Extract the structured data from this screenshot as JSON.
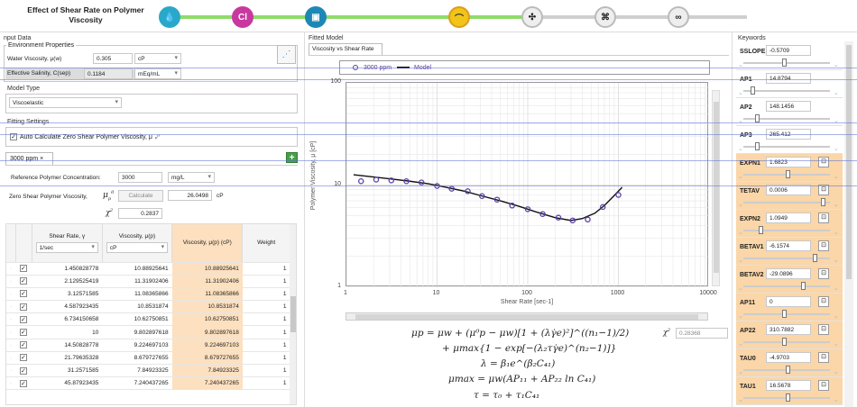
{
  "app": {
    "title": "Effect of Shear Rate on Polymer Viscosity"
  },
  "workflow": {
    "step_icons": [
      "water-drop-icon",
      "salinity-flask-icon",
      "container-icon",
      "curve-fit-icon",
      "molecule-icon",
      "filter-icon",
      "chain-icon"
    ]
  },
  "input": {
    "section": "nput Data",
    "env_title": "Environment Properties",
    "water_visc_label": "Water Viscosity, μ(w)",
    "water_visc_value": "0.305",
    "water_visc_unit": "cP",
    "sal_label": "Effective Salinity, C(sep)",
    "sal_value": "0.1184",
    "sal_unit": "mEq/mL",
    "model_type_title": "Model Type",
    "model_type_value": "Viscoelastic",
    "fit_title": "Fitting Settings",
    "auto_calc_label": "Auto Calculate Zero Shear Polymer Viscosity, μ",
    "tab_label": "3000 ppm",
    "ref_conc_label": "Reference Polymer Concentration:",
    "ref_conc_value": "3000",
    "ref_conc_unit": "mg/L",
    "zero_shear_label": "Zero Shear Polymer Viscosity,",
    "calc_button": "Calculate",
    "zero_shear_value": "26.0498",
    "zero_shear_unit": "cP",
    "chi_label": "χ",
    "chi_value": "0.2837"
  },
  "table": {
    "headers": {
      "shear": "Shear Rate, γ",
      "shear_unit": "1/sec",
      "visc": "Viscosity, μ(p)",
      "visc_unit": "cP",
      "visc2": "Viscosity, μ(p) (cP)",
      "weight": "Weight"
    },
    "rows": [
      [
        "1.450828778",
        "10.88925641",
        "10.88925641",
        "1"
      ],
      [
        "2.129525419",
        "11.31902406",
        "11.31902406",
        "1"
      ],
      [
        "3.12571585",
        "11.08365866",
        "11.08365866",
        "1"
      ],
      [
        "4.587923435",
        "10.8531874",
        "10.8531874",
        "1"
      ],
      [
        "6.734150658",
        "10.62750851",
        "10.62750851",
        "1"
      ],
      [
        "10",
        "9.802897618",
        "9.802897618",
        "1"
      ],
      [
        "14.50828778",
        "9.224697103",
        "9.224697103",
        "1"
      ],
      [
        "21.79635328",
        "8.679727655",
        "8.679727655",
        "1"
      ],
      [
        "31.2571585",
        "7.84923325",
        "7.84923325",
        "1"
      ],
      [
        "45.87923435",
        "7.240437265",
        "7.240437265",
        "1"
      ]
    ]
  },
  "fitted": {
    "section": "Fitted Model",
    "tab": "Viscosity vs Shear Rate",
    "legend_points": "3000 ppm",
    "legend_model": "Model",
    "chi_label": "χ",
    "chi_value": "0.28368"
  },
  "chart_data": {
    "type": "scatter",
    "xlabel": "Shear Rate [sec-1]",
    "ylabel": "Polymer Viscosity, μ [cP]",
    "xscale": "log",
    "yscale": "log",
    "xlim": [
      1,
      10000
    ],
    "ylim": [
      1,
      100
    ],
    "x_ticks": [
      "1",
      "10",
      "100",
      "1000",
      "10000"
    ],
    "y_ticks": [
      "1",
      "10",
      "100"
    ],
    "grid": true,
    "legend": "top",
    "series": [
      {
        "name": "3000 ppm",
        "kind": "points",
        "color": "#5b3fa6",
        "x": [
          1.45,
          2.13,
          3.13,
          4.59,
          6.73,
          10,
          14.5,
          21.8,
          31.3,
          45.9,
          67.3,
          100,
          146,
          218,
          313,
          459,
          673,
          1000
        ],
        "y": [
          10.9,
          11.3,
          11.1,
          10.9,
          10.6,
          9.8,
          9.2,
          8.7,
          7.8,
          7.2,
          6.3,
          5.8,
          5.2,
          4.8,
          4.5,
          4.6,
          6.1,
          8.0
        ]
      },
      {
        "name": "Model",
        "kind": "line",
        "color": "#111",
        "x": [
          1.2,
          2,
          3,
          5,
          8,
          12,
          20,
          30,
          50,
          80,
          120,
          200,
          300,
          400,
          550,
          700,
          900,
          1100
        ],
        "y": [
          12.6,
          12.0,
          11.5,
          10.9,
          10.3,
          9.6,
          8.7,
          7.9,
          7.0,
          6.2,
          5.5,
          4.8,
          4.5,
          4.7,
          5.3,
          6.3,
          7.9,
          9.5
        ]
      }
    ]
  },
  "equations": {
    "l1": "μp = μw + (μ⁰p − μw)[1 + (λγ̇e)²]^((n₁−1)/2)",
    "l2": "+ μmax{1 − exp[−(λ₂τγ̇e)^(n₂−1)]}",
    "l3": "λ = β₁e^(β₂C₄₁)",
    "l4": "μmax = μw(AP₁₁ + AP₂₂ ln C₄₁)",
    "l5": "τ = τ₀ + τ₁C₄₁"
  },
  "keywords": {
    "title": "Keywords",
    "items": [
      {
        "name": "SSLOPE",
        "value": "-0.5709",
        "highlight": false,
        "lock": false,
        "pos": 0.45
      },
      {
        "name": "AP1",
        "value": "14.8794",
        "highlight": false,
        "lock": false,
        "pos": 0.05
      },
      {
        "name": "AP2",
        "value": "148.1456",
        "highlight": false,
        "lock": false,
        "pos": 0.1
      },
      {
        "name": "AP3",
        "value": "265.412",
        "highlight": false,
        "lock": false,
        "pos": 0.1
      },
      {
        "name": "EXPN1",
        "value": "1.6823",
        "highlight": true,
        "lock": true,
        "pos": 0.5
      },
      {
        "name": "TETAV",
        "value": "0.0006",
        "highlight": true,
        "lock": true,
        "pos": 0.95
      },
      {
        "name": "EXPN2",
        "value": "1.0949",
        "highlight": true,
        "lock": true,
        "pos": 0.15
      },
      {
        "name": "BETAV1",
        "value": "-6.1574",
        "highlight": true,
        "lock": true,
        "pos": 0.85
      },
      {
        "name": "BETAV2",
        "value": "-29.0896",
        "highlight": true,
        "lock": true,
        "pos": 0.7
      },
      {
        "name": "AP11",
        "value": "0",
        "highlight": true,
        "lock": true,
        "pos": 0.45
      },
      {
        "name": "AP22",
        "value": "310.7882",
        "highlight": true,
        "lock": true,
        "pos": 0.45
      },
      {
        "name": "TAU0",
        "value": "-4.9703",
        "highlight": true,
        "lock": true,
        "pos": 0.5
      },
      {
        "name": "TAU1",
        "value": "16.5678",
        "highlight": true,
        "lock": true,
        "pos": 0.5
      }
    ]
  }
}
